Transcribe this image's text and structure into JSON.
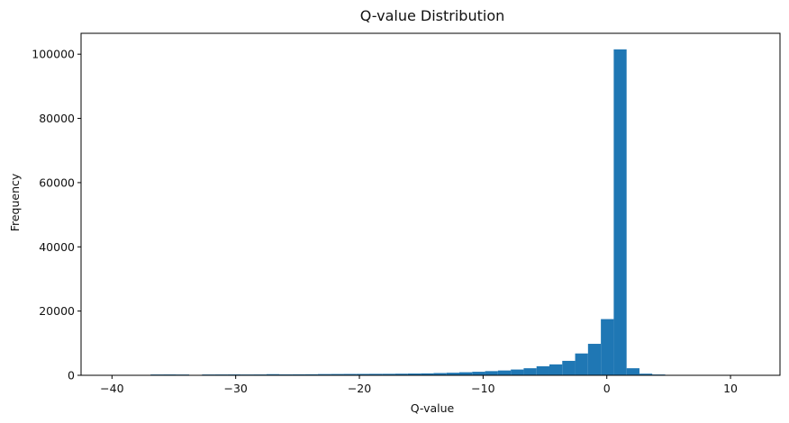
{
  "chart_data": {
    "type": "bar",
    "title": "Q-value Distribution",
    "xlabel": "Q-value",
    "ylabel": "Frequency",
    "xlim": [
      -42.5,
      14.0
    ],
    "ylim": [
      0,
      106500
    ],
    "xticks": [
      -40,
      -30,
      -20,
      -10,
      0,
      10
    ],
    "xtick_labels": [
      "−40",
      "−30",
      "−20",
      "−10",
      "0",
      "10"
    ],
    "yticks": [
      0,
      20000,
      40000,
      60000,
      80000,
      100000
    ],
    "ytick_labels": [
      "0",
      "20000",
      "40000",
      "60000",
      "80000",
      "100000"
    ],
    "bar_color": "#1f77b4",
    "bins": [
      {
        "x0": -40.0,
        "x1": -38.96,
        "value": 50
      },
      {
        "x0": -38.96,
        "x1": -37.92,
        "value": 40
      },
      {
        "x0": -37.92,
        "x1": -36.88,
        "value": 60
      },
      {
        "x0": -36.88,
        "x1": -35.84,
        "value": 250
      },
      {
        "x0": -35.84,
        "x1": -34.8,
        "value": 260
      },
      {
        "x0": -34.8,
        "x1": -33.76,
        "value": 240
      },
      {
        "x0": -33.76,
        "x1": -32.72,
        "value": 100
      },
      {
        "x0": -32.72,
        "x1": -31.68,
        "value": 250
      },
      {
        "x0": -31.68,
        "x1": -30.64,
        "value": 260
      },
      {
        "x0": -30.64,
        "x1": -29.6,
        "value": 270
      },
      {
        "x0": -29.6,
        "x1": -28.56,
        "value": 250
      },
      {
        "x0": -28.56,
        "x1": -27.52,
        "value": 260
      },
      {
        "x0": -27.52,
        "x1": -26.48,
        "value": 350
      },
      {
        "x0": -26.48,
        "x1": -25.44,
        "value": 280
      },
      {
        "x0": -25.44,
        "x1": -24.4,
        "value": 300
      },
      {
        "x0": -24.4,
        "x1": -23.36,
        "value": 320
      },
      {
        "x0": -23.36,
        "x1": -22.32,
        "value": 380
      },
      {
        "x0": -22.32,
        "x1": -21.28,
        "value": 400
      },
      {
        "x0": -21.28,
        "x1": -20.24,
        "value": 420
      },
      {
        "x0": -20.24,
        "x1": -19.2,
        "value": 430
      },
      {
        "x0": -19.2,
        "x1": -18.16,
        "value": 450
      },
      {
        "x0": -18.16,
        "x1": -17.12,
        "value": 460
      },
      {
        "x0": -17.12,
        "x1": -16.08,
        "value": 500
      },
      {
        "x0": -16.08,
        "x1": -15.04,
        "value": 550
      },
      {
        "x0": -15.04,
        "x1": -14.0,
        "value": 600
      },
      {
        "x0": -14.0,
        "x1": -12.96,
        "value": 700
      },
      {
        "x0": -12.96,
        "x1": -11.92,
        "value": 800
      },
      {
        "x0": -11.92,
        "x1": -10.88,
        "value": 950
      },
      {
        "x0": -10.88,
        "x1": -9.84,
        "value": 1100
      },
      {
        "x0": -9.84,
        "x1": -8.8,
        "value": 1300
      },
      {
        "x0": -8.8,
        "x1": -7.76,
        "value": 1500
      },
      {
        "x0": -7.76,
        "x1": -6.72,
        "value": 1800
      },
      {
        "x0": -6.72,
        "x1": -5.68,
        "value": 2200
      },
      {
        "x0": -5.68,
        "x1": -4.64,
        "value": 2800
      },
      {
        "x0": -4.64,
        "x1": -3.6,
        "value": 3400
      },
      {
        "x0": -3.6,
        "x1": -2.56,
        "value": 4500
      },
      {
        "x0": -2.56,
        "x1": -1.52,
        "value": 6800
      },
      {
        "x0": -1.52,
        "x1": -0.48,
        "value": 9800
      },
      {
        "x0": -0.48,
        "x1": 0.56,
        "value": 17500
      },
      {
        "x0": 0.56,
        "x1": 1.6,
        "value": 101500
      },
      {
        "x0": 1.6,
        "x1": 2.64,
        "value": 2200
      },
      {
        "x0": 2.64,
        "x1": 3.68,
        "value": 500
      },
      {
        "x0": 3.68,
        "x1": 4.72,
        "value": 250
      },
      {
        "x0": 4.72,
        "x1": 5.76,
        "value": 80
      },
      {
        "x0": 5.76,
        "x1": 6.8,
        "value": 40
      },
      {
        "x0": 6.8,
        "x1": 7.84,
        "value": 30
      },
      {
        "x0": 7.84,
        "x1": 8.88,
        "value": 20
      },
      {
        "x0": 8.88,
        "x1": 9.92,
        "value": 15
      },
      {
        "x0": 9.92,
        "x1": 10.96,
        "value": 10
      },
      {
        "x0": 10.96,
        "x1": 12.0,
        "value": 10
      }
    ]
  }
}
